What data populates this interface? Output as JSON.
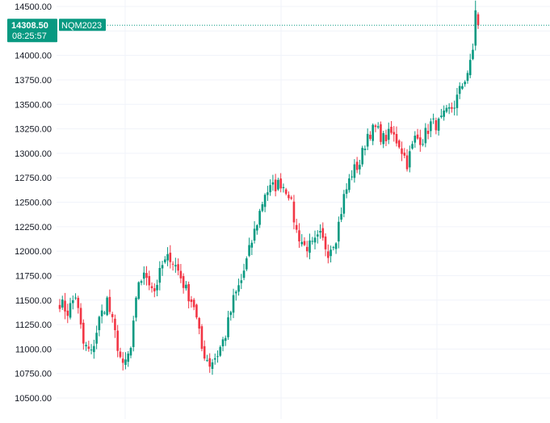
{
  "price_tag": {
    "price": "14308.50",
    "countdown": "08:25:57",
    "color": "#089981"
  },
  "symbol_tag": {
    "label": "NQM2023",
    "color": "#089981"
  },
  "colors": {
    "up": "#089981",
    "down": "#F23645",
    "grid": "#F0F3FA",
    "axis_text": "#131722"
  },
  "chart_data": {
    "type": "candlestick",
    "symbol": "NQM2023",
    "last_price": 14308.5,
    "ylim": [
      10440,
      14560
    ],
    "y_ticks": [
      "10500.00",
      "10750.00",
      "11000.00",
      "11250.00",
      "11500.00",
      "11750.00",
      "12000.00",
      "12250.00",
      "12500.00",
      "12750.00",
      "13000.00",
      "13250.00",
      "13500.00",
      "13750.00",
      "14000.00",
      "14500.00"
    ],
    "y_tick_values": [
      10500,
      10750,
      11000,
      11250,
      11500,
      11750,
      12000,
      12250,
      12500,
      12750,
      13000,
      13250,
      13500,
      13750,
      14000,
      14500
    ],
    "grid": true,
    "axis_position": "left",
    "waypoints": [
      [
        0,
        11480
      ],
      [
        3,
        11380
      ],
      [
        6,
        11550
      ],
      [
        9,
        11050
      ],
      [
        12,
        10950
      ],
      [
        15,
        11300
      ],
      [
        18,
        11500
      ],
      [
        21,
        11150
      ],
      [
        24,
        10800
      ],
      [
        27,
        11000
      ],
      [
        30,
        11700
      ],
      [
        33,
        11750
      ],
      [
        36,
        11600
      ],
      [
        39,
        11850
      ],
      [
        42,
        11950
      ],
      [
        45,
        11800
      ],
      [
        48,
        11600
      ],
      [
        51,
        11450
      ],
      [
        54,
        11000
      ],
      [
        57,
        10850
      ],
      [
        60,
        10950
      ],
      [
        63,
        11150
      ],
      [
        66,
        11500
      ],
      [
        69,
        11700
      ],
      [
        72,
        12000
      ],
      [
        75,
        12300
      ],
      [
        78,
        12600
      ],
      [
        81,
        12650
      ],
      [
        84,
        12700
      ],
      [
        87,
        12600
      ],
      [
        90,
        12200
      ],
      [
        93,
        12050
      ],
      [
        96,
        12050
      ],
      [
        99,
        12150
      ],
      [
        102,
        12000
      ],
      [
        105,
        12150
      ],
      [
        108,
        12550
      ],
      [
        111,
        12800
      ],
      [
        114,
        12900
      ],
      [
        117,
        13200
      ],
      [
        120,
        13250
      ],
      [
        123,
        13150
      ],
      [
        126,
        13200
      ],
      [
        129,
        13100
      ],
      [
        132,
        12900
      ],
      [
        135,
        13150
      ],
      [
        138,
        13150
      ],
      [
        141,
        13300
      ],
      [
        144,
        13300
      ],
      [
        147,
        13400
      ],
      [
        150,
        13500
      ],
      [
        153,
        13700
      ],
      [
        156,
        13900
      ],
      [
        159,
        14350
      ]
    ],
    "candles": []
  }
}
